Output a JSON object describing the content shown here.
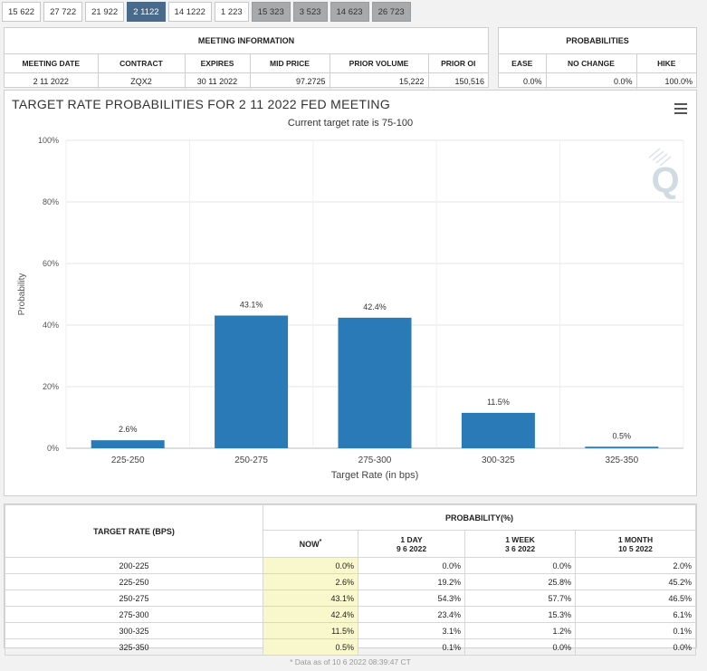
{
  "tabs": [
    {
      "label": "15 622",
      "state": "normal"
    },
    {
      "label": "27 722",
      "state": "normal"
    },
    {
      "label": "21 922",
      "state": "normal"
    },
    {
      "label": "2 1122",
      "state": "active"
    },
    {
      "label": "14 1222",
      "state": "normal"
    },
    {
      "label": "1 223",
      "state": "normal"
    },
    {
      "label": "15 323",
      "state": "gray"
    },
    {
      "label": "3 523",
      "state": "gray"
    },
    {
      "label": "14 623",
      "state": "gray"
    },
    {
      "label": "26 723",
      "state": "gray"
    }
  ],
  "meeting_info": {
    "title": "MEETING INFORMATION",
    "headers": [
      "MEETING DATE",
      "CONTRACT",
      "EXPIRES",
      "MID PRICE",
      "PRIOR VOLUME",
      "PRIOR OI"
    ],
    "values": [
      "2 11 2022",
      "ZQX2",
      "30 11 2022",
      "97.2725",
      "15,222",
      "150,516"
    ]
  },
  "probabilities": {
    "title": "PROBABILITIES",
    "headers": [
      "EASE",
      "NO CHANGE",
      "HIKE"
    ],
    "values": [
      "0.0%",
      "0.0%",
      "100.0%"
    ]
  },
  "chart_header": {
    "title": "TARGET RATE PROBABILITIES FOR 2 11 2022 FED MEETING",
    "subtitle": "Current target rate is 75-100"
  },
  "chart_data": {
    "type": "bar",
    "title": "TARGET RATE PROBABILITIES FOR 2 11 2022 FED MEETING",
    "subtitle": "Current target rate is 75-100",
    "categories": [
      "225-250",
      "250-275",
      "275-300",
      "300-325",
      "325-350"
    ],
    "values": [
      2.6,
      43.1,
      42.4,
      11.5,
      0.5
    ],
    "data_labels": [
      "2.6%",
      "43.1%",
      "42.4%",
      "11.5%",
      "0.5%"
    ],
    "xlabel": "Target Rate (in bps)",
    "ylabel": "Probability",
    "ylim": [
      0,
      100
    ],
    "yticks": [
      0,
      20,
      40,
      60,
      80,
      100
    ],
    "ytick_labels": [
      "0%",
      "20%",
      "40%",
      "60%",
      "80%",
      "100%"
    ],
    "bar_color": "#2a7ab8",
    "grid": true
  },
  "prob_table": {
    "target_rate_header": "TARGET RATE (BPS)",
    "prob_header": "PROBABILITY(%)",
    "col_now": "NOW",
    "col_now_mark": "*",
    "col_1day": "1 DAY",
    "col_1day_date": "9 6 2022",
    "col_1week": "1 WEEK",
    "col_1week_date": "3 6 2022",
    "col_1month": "1 MONTH",
    "col_1month_date": "10 5 2022",
    "rows": [
      {
        "rate": "200-225",
        "now": "0.0%",
        "day": "0.0%",
        "week": "0.0%",
        "month": "2.0%"
      },
      {
        "rate": "225-250",
        "now": "2.6%",
        "day": "19.2%",
        "week": "25.8%",
        "month": "45.2%"
      },
      {
        "rate": "250-275",
        "now": "43.1%",
        "day": "54.3%",
        "week": "57.7%",
        "month": "46.5%"
      },
      {
        "rate": "275-300",
        "now": "42.4%",
        "day": "23.4%",
        "week": "15.3%",
        "month": "6.1%"
      },
      {
        "rate": "300-325",
        "now": "11.5%",
        "day": "3.1%",
        "week": "1.2%",
        "month": "0.1%"
      },
      {
        "rate": "325-350",
        "now": "0.5%",
        "day": "0.1%",
        "week": "0.0%",
        "month": "0.0%"
      }
    ],
    "footnote": "* Data as of 10 6 2022 08:39:47 CT"
  }
}
